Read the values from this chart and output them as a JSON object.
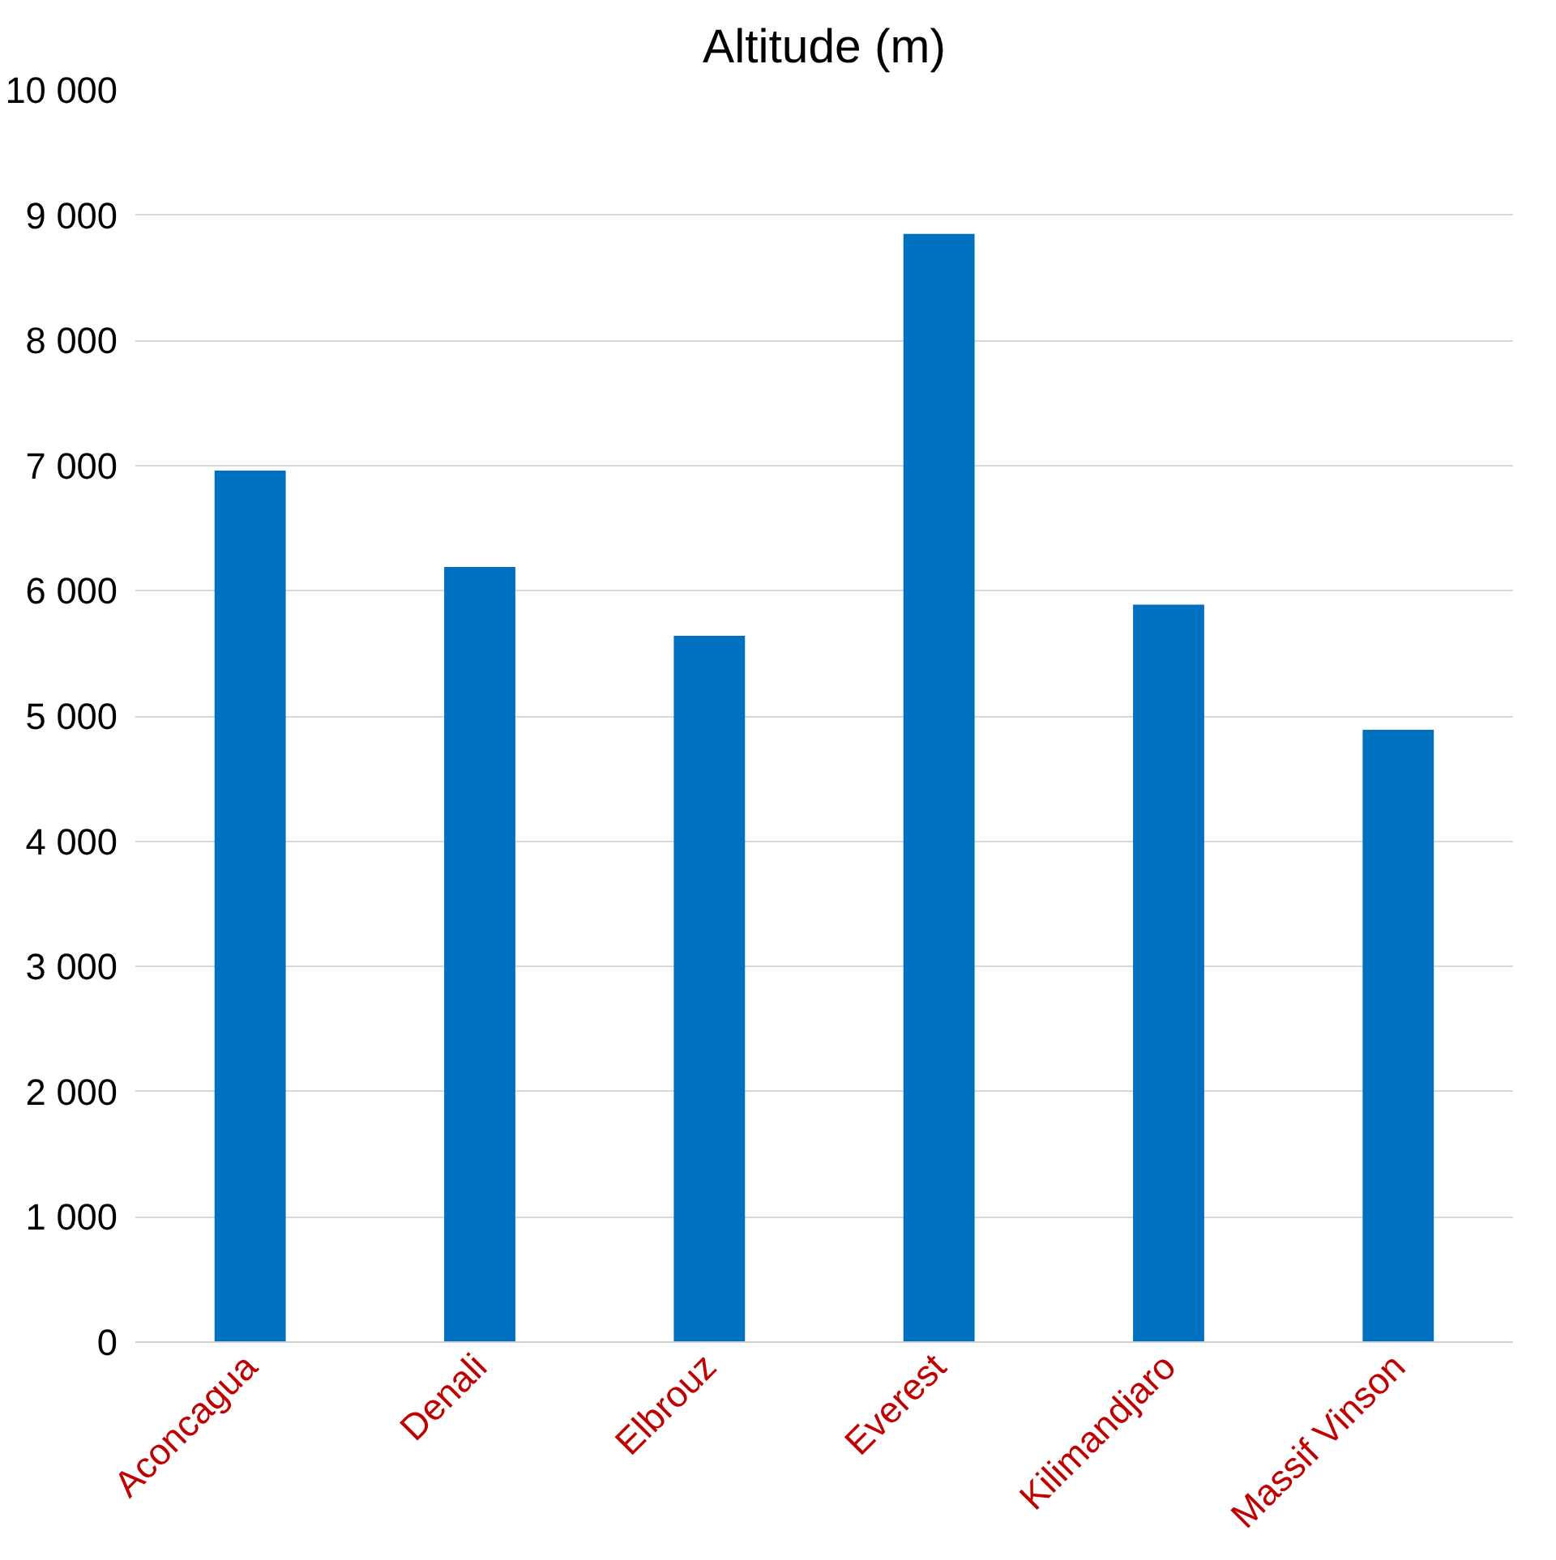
{
  "chart_data": {
    "type": "bar",
    "title": "Altitude (m)",
    "categories": [
      "Aconcagua",
      "Denali",
      "Elbrouz",
      "Everest",
      "Kilimandjaro",
      "Massif Vinson"
    ],
    "values": [
      6960,
      6190,
      5640,
      8850,
      5890,
      4890
    ],
    "color": "#0070c0",
    "ylim": [
      0,
      10000
    ],
    "yticks": [
      {
        "value": 0,
        "label": "0"
      },
      {
        "value": 1000,
        "label": "1 000"
      },
      {
        "value": 2000,
        "label": "2 000"
      },
      {
        "value": 3000,
        "label": "3 000"
      },
      {
        "value": 4000,
        "label": "4 000"
      },
      {
        "value": 5000,
        "label": "5 000"
      },
      {
        "value": 6000,
        "label": "6 000"
      },
      {
        "value": 7000,
        "label": "7 000"
      },
      {
        "value": 8000,
        "label": "8 000"
      },
      {
        "value": 9000,
        "label": "9 000"
      },
      {
        "value": 10000,
        "label": "10 000"
      }
    ],
    "grid": "y"
  }
}
